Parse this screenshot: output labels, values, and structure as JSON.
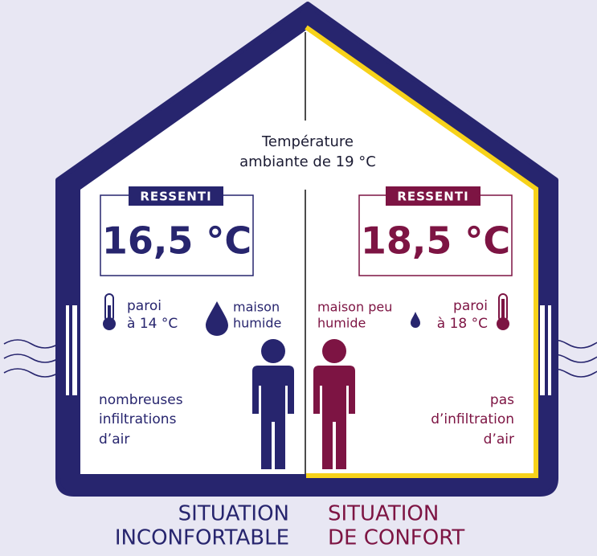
{
  "center_label": [
    "Température",
    "ambiante de 19 °C"
  ],
  "left": {
    "badge": "RESSENTI",
    "temperature": "16,5 °C",
    "wall": [
      "paroi",
      "à 14 °C"
    ],
    "humidity": [
      "maison",
      "humide"
    ],
    "infiltration": [
      "nombreuses",
      "infiltrations",
      "d’air"
    ],
    "situation": [
      "SITUATION",
      "INCONFORTABLE"
    ]
  },
  "right": {
    "badge": "RESSENTI",
    "temperature": "18,5 °C",
    "wall": [
      "paroi",
      "à 18 °C"
    ],
    "humidity": [
      "maison peu",
      "humide"
    ],
    "infiltration": [
      "pas",
      "d’infiltration",
      "d’air"
    ],
    "situation": [
      "SITUATION",
      "DE CONFORT"
    ]
  }
}
